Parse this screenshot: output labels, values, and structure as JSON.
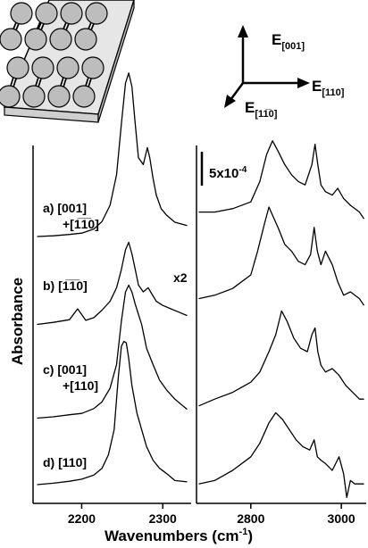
{
  "chart_data": {
    "type": "line",
    "ylabel": "Absorbance",
    "xlabel_main": "Wavenumbers (cm",
    "xlabel_sup": "-1",
    "xlabel_tail": ")",
    "scale_bar_label": "5x10",
    "scale_bar_exp": "-4",
    "panels": [
      {
        "name": "left",
        "xlim": [
          2140,
          2335
        ],
        "ticks": [
          2200,
          2300
        ]
      },
      {
        "name": "right",
        "xlim": [
          2680,
          3055
        ],
        "ticks": [
          2800,
          3000
        ]
      }
    ],
    "diagram_labels": {
      "e001": {
        "main": "E",
        "sub": "[001]"
      },
      "e110": {
        "main": "E",
        "sub": "[110]"
      },
      "e1b10": {
        "main": "E",
        "sub": "[11̅0]"
      }
    },
    "series": [
      {
        "name_line1": "a) [001]",
        "name_line2": "+[1̅1̅0]",
        "multiplier": "",
        "left": {
          "x": [
            2145,
            2165,
            2185,
            2200,
            2215,
            2225,
            2235,
            2243,
            2249,
            2254,
            2258,
            2262,
            2266,
            2270,
            2276,
            2281,
            2284,
            2288,
            2292,
            2298,
            2305,
            2315,
            2330
          ],
          "y": [
            0.4,
            0.5,
            0.7,
            0.9,
            1.5,
            2.6,
            5.0,
            9.5,
            17.0,
            23.0,
            24.5,
            22.5,
            17.0,
            12.0,
            11.0,
            13.5,
            12.0,
            9.0,
            6.5,
            4.5,
            3.5,
            2.5,
            2.0
          ]
        },
        "right": {
          "x": [
            2685,
            2720,
            2760,
            2800,
            2820,
            2835,
            2848,
            2860,
            2875,
            2890,
            2905,
            2920,
            2935,
            2942,
            2948,
            2955,
            2965,
            2980,
            2992,
            3005,
            3020,
            3040,
            3050
          ],
          "y": [
            4.0,
            4.0,
            4.5,
            5.5,
            8.5,
            12.5,
            14.5,
            13.0,
            11.0,
            9.5,
            8.5,
            8.0,
            11.0,
            14.0,
            11.0,
            8.0,
            7.0,
            6.5,
            7.5,
            6.0,
            5.0,
            4.0,
            3.0
          ]
        }
      },
      {
        "name_line1": "b) [1̅1̅0]",
        "name_line2": "",
        "multiplier": "x2",
        "left": {
          "x": [
            2145,
            2165,
            2185,
            2195,
            2205,
            2215,
            2225,
            2235,
            2243,
            2249,
            2254,
            2258,
            2262,
            2266,
            2270,
            2276,
            2282,
            2286,
            2292,
            2300,
            2310,
            2320,
            2330
          ],
          "y": [
            0.2,
            0.5,
            0.9,
            2.5,
            0.8,
            1.2,
            2.3,
            3.6,
            5.6,
            8.3,
            11.2,
            12.3,
            10.6,
            8.3,
            6.0,
            5.0,
            5.6,
            4.8,
            3.6,
            3.0,
            2.5,
            2.0,
            1.5
          ]
        },
        "right": {
          "x": [
            2685,
            2720,
            2760,
            2800,
            2815,
            2830,
            2840,
            2850,
            2860,
            2875,
            2890,
            2905,
            2920,
            2932,
            2940,
            2947,
            2955,
            2965,
            2980,
            2992,
            3005,
            3020,
            3040,
            3050
          ],
          "y": [
            4.0,
            4.5,
            5.5,
            7.5,
            11.0,
            15.0,
            17.5,
            16.0,
            14.5,
            12.0,
            11.0,
            9.5,
            9.0,
            10.5,
            14.5,
            11.0,
            9.0,
            11.0,
            9.0,
            6.5,
            4.5,
            5.0,
            4.0,
            3.0
          ]
        }
      },
      {
        "name_line1": "c) [001]",
        "name_line2": "+[110]",
        "multiplier": "x2",
        "left": {
          "x": [
            2145,
            2165,
            2185,
            2200,
            2215,
            2225,
            2235,
            2243,
            2249,
            2254,
            2258,
            2262,
            2266,
            2270,
            2274,
            2280,
            2288,
            2296,
            2305,
            2315,
            2330
          ],
          "y": [
            0.2,
            0.4,
            0.7,
            0.9,
            1.6,
            2.6,
            4.6,
            8.1,
            14.5,
            18.8,
            19.8,
            18.8,
            17.0,
            15.5,
            14.0,
            10.5,
            8.1,
            5.8,
            4.3,
            3.0,
            1.5
          ]
        },
        "right": {
          "x": [
            2685,
            2720,
            2760,
            2800,
            2820,
            2840,
            2855,
            2868,
            2880,
            2895,
            2910,
            2925,
            2935,
            2942,
            2948,
            2955,
            2965,
            2980,
            2995,
            3010,
            3025,
            3040,
            3050
          ],
          "y": [
            2.0,
            3.0,
            4.0,
            5.5,
            7.0,
            10.0,
            12.5,
            16.0,
            14.5,
            12.0,
            10.5,
            10.0,
            12.5,
            13.5,
            10.0,
            8.0,
            7.0,
            7.5,
            6.5,
            5.0,
            4.0,
            3.0,
            3.0
          ]
        }
      },
      {
        "name_line1": "d) [110]",
        "name_line2": "",
        "multiplier": "",
        "left": {
          "x": [
            2145,
            2165,
            2185,
            2200,
            2215,
            2225,
            2233,
            2240,
            2245,
            2249,
            2252,
            2255,
            2258,
            2262,
            2268,
            2274,
            2280,
            2288,
            2296,
            2305,
            2315,
            2330
          ],
          "y": [
            0.4,
            0.6,
            0.9,
            1.2,
            1.8,
            2.8,
            4.8,
            8.5,
            16.0,
            20.8,
            21.5,
            21.3,
            19.0,
            15.0,
            11.0,
            8.5,
            6.0,
            4.0,
            2.8,
            2.0,
            1.0,
            0.8
          ]
        },
        "right": {
          "x": [
            2685,
            2720,
            2760,
            2800,
            2820,
            2840,
            2855,
            2870,
            2885,
            2900,
            2915,
            2930,
            2940,
            2947,
            2955,
            2965,
            2980,
            2995,
            3005,
            3012,
            3020,
            3030,
            3050
          ],
          "y": [
            0.5,
            1.0,
            2.5,
            4.5,
            6.5,
            9.5,
            11.0,
            10.0,
            8.5,
            7.0,
            6.0,
            5.5,
            7.0,
            4.5,
            4.0,
            3.5,
            2.5,
            4.5,
            2.0,
            -1.5,
            1.0,
            0.5,
            0.5
          ]
        }
      }
    ]
  }
}
